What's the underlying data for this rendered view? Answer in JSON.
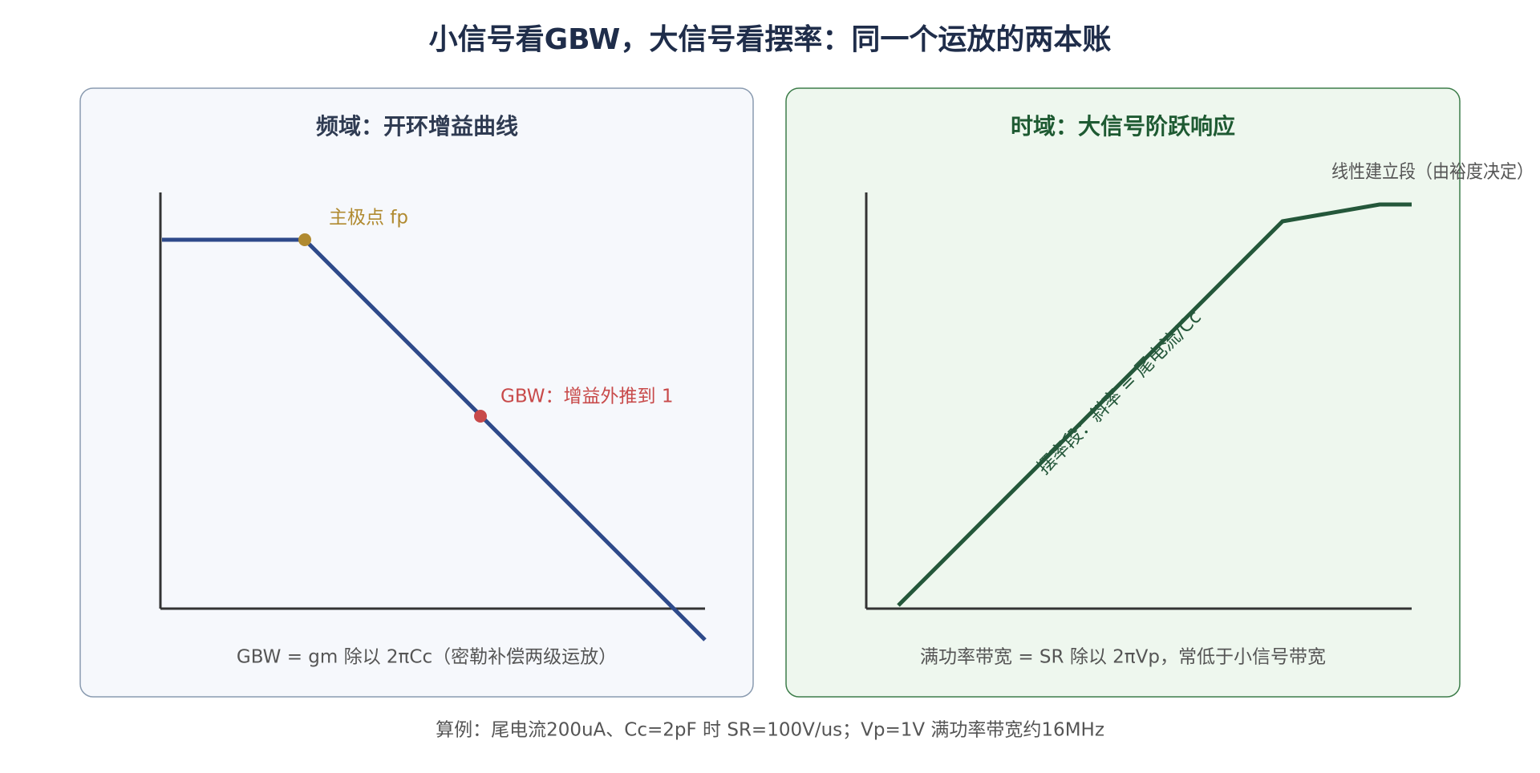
{
  "title": "小信号看GBW，大信号看摆率：同一个运放的两本账",
  "left_panel": {
    "title": "频域：开环增益曲线",
    "pole_label": "主极点 fp",
    "gbw_label": "GBW：增益外推到 1",
    "caption": "GBW = gm 除以 2πCc（密勒补偿两级运放）"
  },
  "right_panel": {
    "title": "时域：大信号阶跃响应",
    "slew_label": "摆率段：斜率 = 尾电流/Cc",
    "settle_label": "线性建立段（由裕度决定）",
    "caption": "满功率带宽 = SR 除以 2πVp，常低于小信号带宽"
  },
  "footer": "算例：尾电流200uA、Cc=2pF 时 SR=100V/us；Vp=1V 满功率带宽约16MHz"
}
